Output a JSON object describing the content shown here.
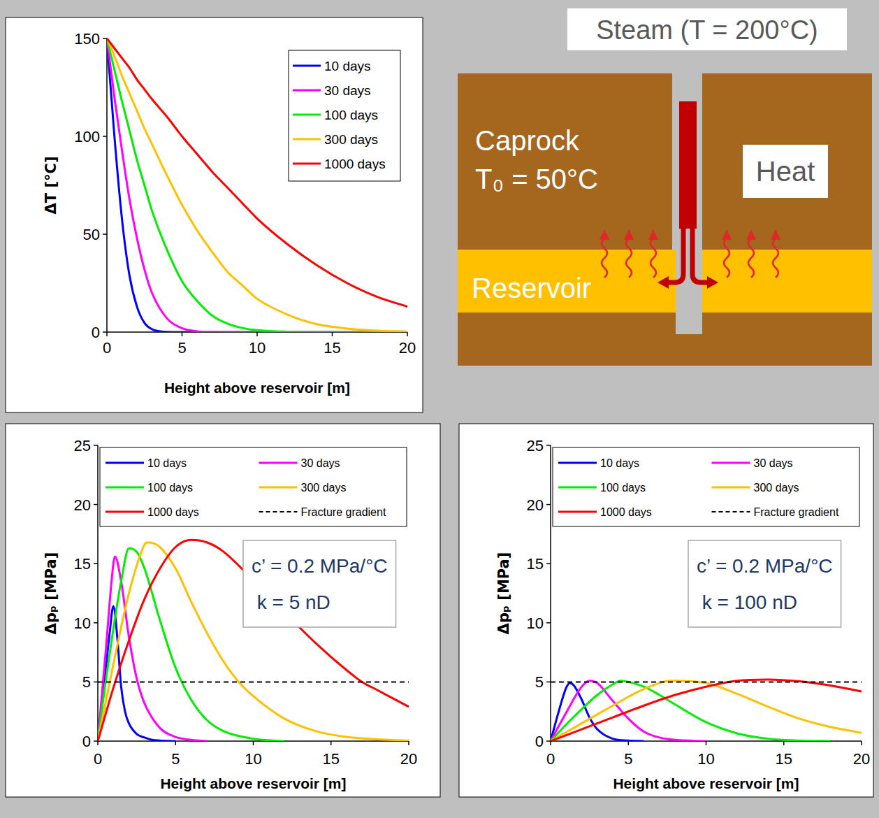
{
  "chart_data": [
    {
      "type": "line",
      "x_label": "Height above reservoir [m]",
      "y_label": "ΔT [°C]",
      "x": [
        0,
        0.5,
        1,
        1.5,
        2,
        2.5,
        3,
        4,
        5,
        6,
        7,
        8,
        9,
        10,
        12,
        14,
        16,
        18,
        20
      ],
      "series": [
        {
          "name": "10 days",
          "color": "#0000FF",
          "values": [
            150,
            100,
            58,
            29,
            13,
            4.7,
            1.5,
            0.1,
            0,
            0,
            0,
            0,
            0,
            0,
            0,
            0,
            0,
            0,
            0
          ]
        },
        {
          "name": "30 days",
          "color": "#FF00FF",
          "values": [
            150,
            120,
            93,
            68,
            48,
            32,
            20,
            7,
            2,
            0.4,
            0.1,
            0,
            0,
            0,
            0,
            0,
            0,
            0,
            0
          ]
        },
        {
          "name": "100 days",
          "color": "#00EE00",
          "values": [
            150,
            134,
            118,
            103,
            88,
            75,
            62,
            42,
            26,
            16,
            8.5,
            4.4,
            2.1,
            1,
            0.2,
            0,
            0,
            0,
            0
          ]
        },
        {
          "name": "300 days",
          "color": "#FFC000",
          "values": [
            150,
            141,
            131,
            122,
            113,
            104,
            96,
            80,
            65,
            52,
            41,
            31,
            24,
            17,
            9,
            4,
            1.8,
            0.7,
            0.3
          ]
        },
        {
          "name": "1000 days",
          "color": "#FF0000",
          "values": [
            150,
            145,
            140,
            135,
            129,
            124,
            119,
            110,
            100,
            91,
            82,
            74,
            66,
            58,
            45,
            34,
            25,
            18,
            13
          ]
        }
      ],
      "xlim": [
        0,
        20
      ],
      "xticks": [
        0,
        5,
        10,
        15,
        20
      ],
      "ylim": [
        0,
        150
      ],
      "yticks": [
        0,
        50,
        100,
        150
      ],
      "legend": "upper right"
    },
    {
      "type": "line",
      "x_label": "Height above reservoir [m]",
      "y_label": "Δpₚ [MPa]",
      "annotations": [
        "c’ = 0.2 MPa/°C",
        " k = 5 nD"
      ],
      "series": [
        {
          "name": "10 days",
          "color": "#0000FF",
          "x": [
            0,
            0.25,
            0.5,
            0.75,
            1,
            1.25,
            1.5,
            1.75,
            2,
            2.5,
            3,
            3.5,
            4,
            5
          ],
          "values": [
            0,
            3,
            6,
            9,
            11.4,
            8.8,
            4.6,
            2.5,
            1.5,
            0.6,
            0.3,
            0.1,
            0.05,
            0
          ]
        },
        {
          "name": "30 days",
          "color": "#FF00FF",
          "x": [
            0,
            0.5,
            1,
            1.1,
            1.5,
            2,
            2.5,
            3,
            4,
            5,
            6,
            7
          ],
          "values": [
            0,
            7.5,
            15,
            15.6,
            13.5,
            8.8,
            5.3,
            3.2,
            1.1,
            0.35,
            0.1,
            0
          ]
        },
        {
          "name": "100 days",
          "color": "#00EE00",
          "x": [
            0,
            0.5,
            1,
            1.5,
            2,
            2.5,
            3,
            4,
            5,
            6,
            7,
            8,
            10,
            12
          ],
          "values": [
            0,
            5,
            9.5,
            13.5,
            16.3,
            16,
            14.6,
            10.2,
            6.2,
            3.5,
            1.8,
            0.9,
            0.2,
            0
          ]
        },
        {
          "name": "300 days",
          "color": "#FFC000",
          "x": [
            0,
            1,
            2,
            3,
            3.2,
            4,
            5,
            6,
            7,
            8,
            9,
            10,
            12,
            14,
            16,
            18,
            20
          ],
          "values": [
            0,
            6.5,
            12.5,
            16.6,
            16.8,
            16.4,
            14.6,
            11.8,
            9.2,
            6.9,
            5.1,
            3.8,
            1.9,
            0.85,
            0.35,
            0.15,
            0.05
          ]
        },
        {
          "name": "1000 days",
          "color": "#FF0000",
          "x": [
            0,
            1,
            2,
            3,
            4,
            5,
            6,
            7,
            8,
            10,
            12,
            14,
            16,
            17,
            18,
            20
          ],
          "values": [
            0,
            4.5,
            8.5,
            12,
            14.6,
            16.4,
            17,
            16.8,
            16.1,
            13.6,
            10.9,
            8.3,
            6,
            5,
            4.3,
            2.9
          ]
        },
        {
          "name": "Fracture gradient",
          "color": "#000000",
          "line_style": "dashed",
          "x": [
            0,
            20
          ],
          "values": [
            5,
            5
          ]
        }
      ],
      "xlim": [
        0,
        20
      ],
      "xticks": [
        0,
        5,
        10,
        15,
        20
      ],
      "ylim": [
        0,
        25
      ],
      "yticks": [
        0,
        5,
        10,
        15,
        20,
        25
      ],
      "legend": "top"
    },
    {
      "type": "line",
      "x_label": "Height above reservoir [m]",
      "y_label": "Δpₚ [MPa]",
      "annotations": [
        "c’ = 0.2 MPa/°C",
        " k = 100 nD"
      ],
      "series": [
        {
          "name": "10 days",
          "color": "#0000FF",
          "x": [
            0,
            0.5,
            1,
            1.25,
            1.5,
            2,
            2.5,
            3,
            4,
            5,
            6
          ],
          "values": [
            0,
            2.4,
            4.5,
            4.9,
            4.7,
            3.5,
            2,
            1,
            0.2,
            0.05,
            0
          ]
        },
        {
          "name": "30 days",
          "color": "#FF00FF",
          "x": [
            0,
            1,
            2,
            2.5,
            3,
            4,
            5,
            6,
            7,
            8,
            10
          ],
          "values": [
            0,
            2.4,
            4.6,
            5.1,
            4.9,
            3.4,
            1.9,
            0.8,
            0.3,
            0.1,
            0
          ]
        },
        {
          "name": "100 days",
          "color": "#00EE00",
          "x": [
            0,
            1,
            2,
            3,
            4,
            4.5,
            5,
            6,
            7,
            8,
            10,
            12,
            14,
            16,
            18
          ],
          "values": [
            0,
            1.4,
            2.7,
            3.9,
            4.8,
            5.1,
            5,
            4.6,
            3.9,
            3.1,
            1.6,
            0.65,
            0.2,
            0.05,
            0
          ]
        },
        {
          "name": "300 days",
          "color": "#FFC000",
          "x": [
            0,
            2,
            4,
            6,
            7.8,
            10,
            12,
            14,
            16,
            18,
            20
          ],
          "values": [
            0,
            1.5,
            3,
            4.4,
            5.1,
            4.9,
            4,
            2.9,
            1.9,
            1.2,
            0.7
          ]
        },
        {
          "name": "1000 days",
          "color": "#FF0000",
          "x": [
            0,
            2,
            4,
            6,
            8,
            10,
            12,
            14,
            16,
            18,
            20
          ],
          "values": [
            0,
            1,
            2,
            3,
            3.9,
            4.6,
            5.1,
            5.2,
            5.05,
            4.7,
            4.2
          ]
        },
        {
          "name": "Fracture gradient",
          "color": "#000000",
          "line_style": "dashed",
          "x": [
            0,
            20
          ],
          "values": [
            5,
            5
          ]
        }
      ],
      "xlim": [
        0,
        20
      ],
      "xticks": [
        0,
        5,
        10,
        15,
        20
      ],
      "ylim": [
        0,
        25
      ],
      "yticks": [
        0,
        5,
        10,
        15,
        20,
        25
      ],
      "legend": "top"
    }
  ],
  "diagram": {
    "steam_label": "Steam (T = 200°C)",
    "caprock_label": "Caprock",
    "initial_temperature_label": "T₀ = 50°C",
    "heat_label": "Heat",
    "reservoir_label": "Reservoir"
  }
}
